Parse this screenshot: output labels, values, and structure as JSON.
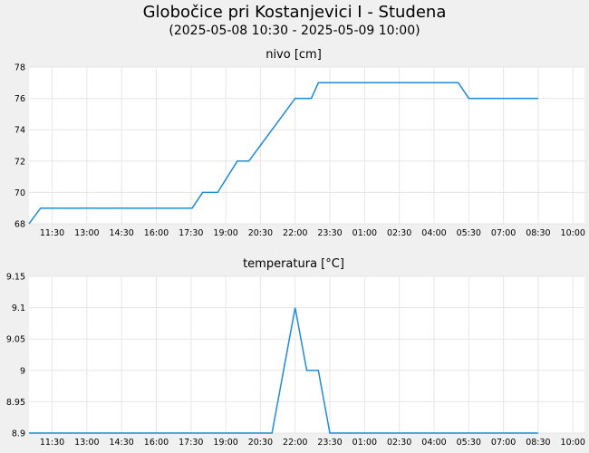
{
  "page": {
    "title": "Globočice pri Kostanjevici I - Studena",
    "subtitle": "(2025-05-08 10:30 - 2025-05-09 10:00)"
  },
  "colors": {
    "series": "#1f8bd8",
    "plot_bg": "#ffffff",
    "grid": "#e6e6e6",
    "page_bg": "#f0f0f0"
  },
  "chart_data": [
    {
      "type": "line",
      "title": "nivo [cm]",
      "xlabel": "",
      "ylabel": "",
      "x_tick_labels": [
        "11:30",
        "13:00",
        "14:30",
        "16:00",
        "17:30",
        "19:00",
        "20:30",
        "22:00",
        "23:30",
        "01:00",
        "02:30",
        "04:00",
        "05:30",
        "07:00",
        "08:30",
        "10:00"
      ],
      "x_tick_hours": [
        1,
        2.5,
        4,
        5.5,
        7,
        8.5,
        10,
        11.5,
        13,
        14.5,
        16,
        17.5,
        19,
        20.5,
        22,
        23.5
      ],
      "xlim_hours": [
        0,
        24
      ],
      "ylim": [
        68,
        78
      ],
      "y_ticks": [
        "68",
        "70",
        "72",
        "74",
        "76",
        "78"
      ],
      "y_tick_values": [
        68,
        70,
        72,
        74,
        76,
        78
      ],
      "grid": true,
      "series": [
        {
          "x_hours": [
            0,
            0.5,
            7.05,
            7.5,
            8.15,
            9.0,
            9.5,
            10.0,
            10.5,
            11.0,
            11.5,
            12.2,
            12.5,
            13.0,
            14.5,
            16.0,
            17.5,
            18.55,
            19.0,
            22.0
          ],
          "values": [
            68,
            69,
            69,
            70,
            70,
            72,
            72,
            73,
            74,
            75,
            76,
            76,
            77,
            77,
            77,
            77,
            77,
            77,
            76,
            76
          ]
        }
      ]
    },
    {
      "type": "line",
      "title": "temperatura [°C]",
      "xlabel": "",
      "ylabel": "",
      "x_tick_labels": [
        "11:30",
        "13:00",
        "14:30",
        "16:00",
        "17:30",
        "19:00",
        "20:30",
        "22:00",
        "23:30",
        "01:00",
        "02:30",
        "04:00",
        "05:30",
        "07:00",
        "08:30",
        "10:00"
      ],
      "x_tick_hours": [
        1,
        2.5,
        4,
        5.5,
        7,
        8.5,
        10,
        11.5,
        13,
        14.5,
        16,
        17.5,
        19,
        20.5,
        22,
        23.5
      ],
      "xlim_hours": [
        0,
        24
      ],
      "ylim": [
        8.9,
        9.15
      ],
      "y_ticks": [
        "8.9",
        "8.95",
        "9",
        "9.05",
        "9.1",
        "9.15"
      ],
      "y_tick_values": [
        8.9,
        8.95,
        9.0,
        9.05,
        9.1,
        9.15
      ],
      "grid": true,
      "series": [
        {
          "x_hours": [
            0,
            10.5,
            11.5,
            12.0,
            12.5,
            13.0,
            22.0
          ],
          "values": [
            8.9,
            8.9,
            9.1,
            9.0,
            9.0,
            8.9,
            8.9
          ]
        }
      ]
    }
  ]
}
